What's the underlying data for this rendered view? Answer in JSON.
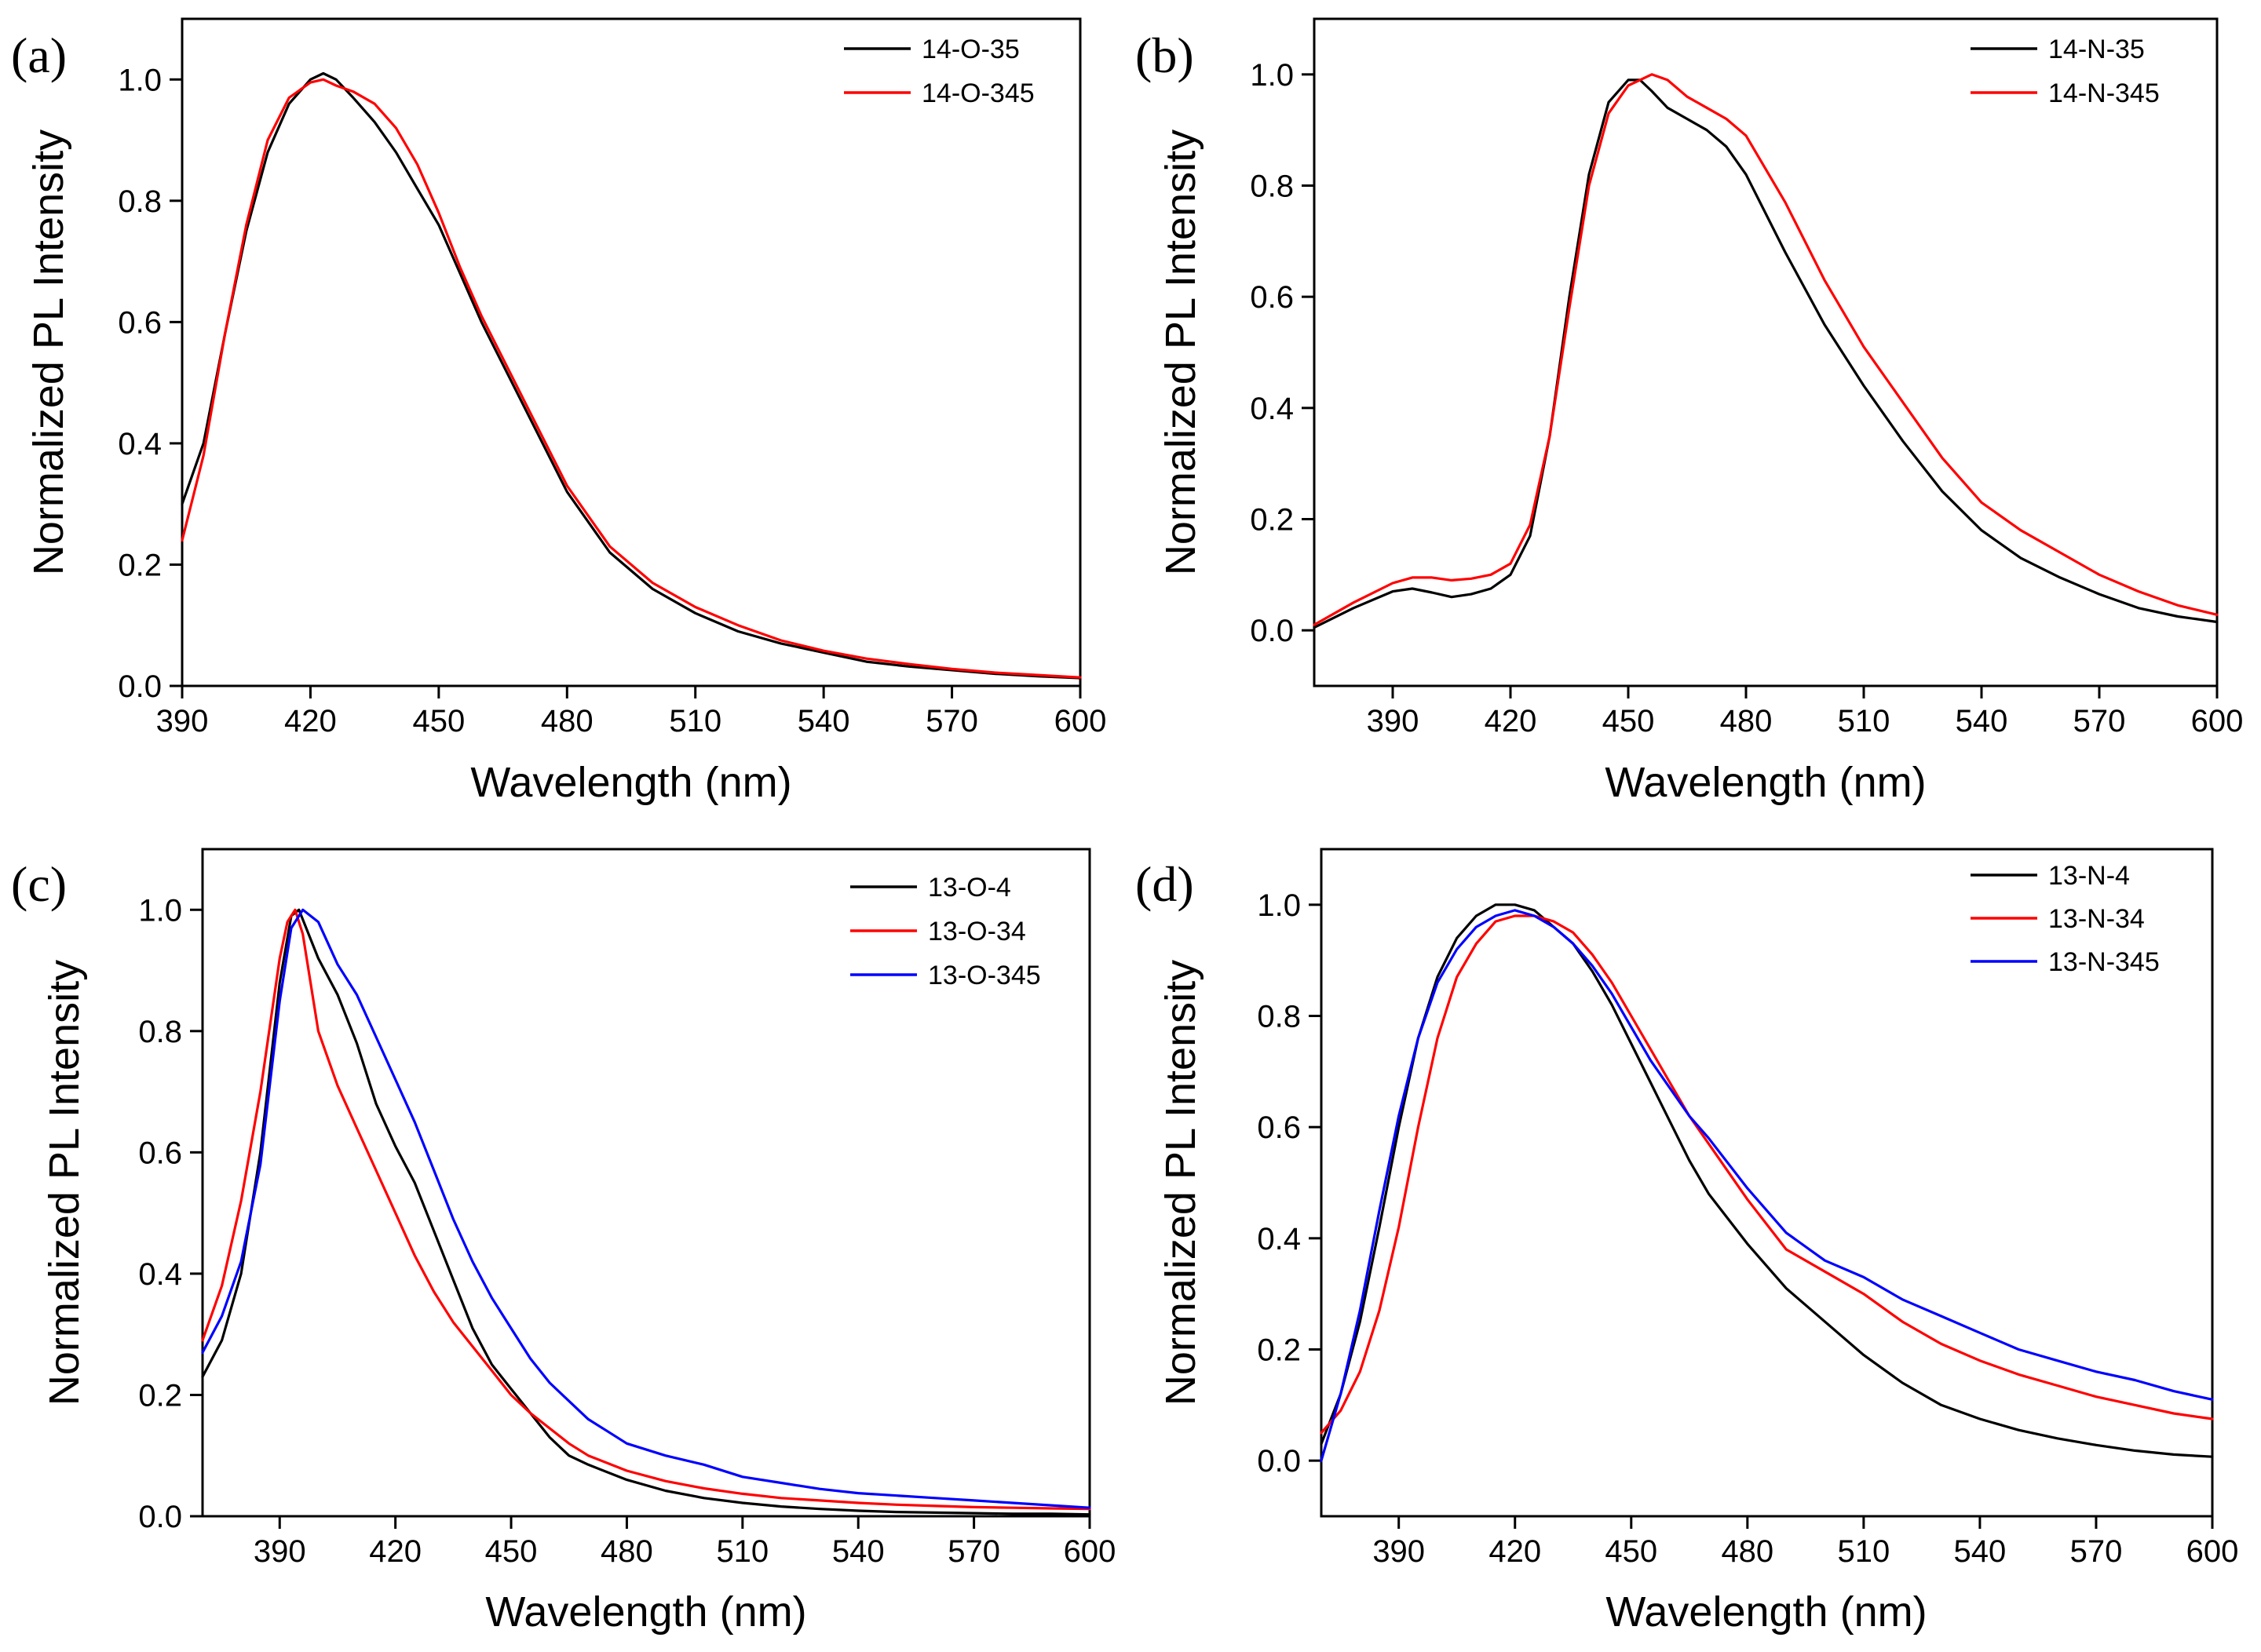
{
  "figure": {
    "colors": {
      "black": "#000000",
      "red": "#ff0000",
      "blue": "#0000ff"
    }
  },
  "chart_data": [
    {
      "id": "a",
      "panel_label": "(a)",
      "type": "line",
      "title": "",
      "xlabel": "Wavelength (nm)",
      "ylabel": "Normalized PL Intensity",
      "xlim": [
        390,
        600
      ],
      "ylim": [
        0.0,
        1.1
      ],
      "xticks": [
        390,
        420,
        450,
        480,
        510,
        540,
        570,
        600
      ],
      "xtick_labels": [
        "390",
        "420",
        "450",
        "480",
        "510",
        "540",
        "570",
        "600"
      ],
      "yticks": [
        0.0,
        0.2,
        0.4,
        0.6,
        0.8,
        1.0
      ],
      "ytick_labels": [
        "0.0",
        "0.2",
        "0.4",
        "0.6",
        "0.8",
        "1.0"
      ],
      "grid": false,
      "legend_position": "top-right",
      "series": [
        {
          "name": "14-O-35",
          "color": "#000000",
          "x": [
            390,
            395,
            400,
            405,
            410,
            415,
            420,
            423,
            426,
            430,
            435,
            440,
            445,
            450,
            455,
            460,
            470,
            480,
            490,
            500,
            510,
            520,
            530,
            540,
            550,
            560,
            570,
            580,
            590,
            600
          ],
          "y": [
            0.3,
            0.4,
            0.58,
            0.75,
            0.88,
            0.96,
            1.0,
            1.01,
            1.0,
            0.97,
            0.93,
            0.88,
            0.82,
            0.76,
            0.68,
            0.6,
            0.46,
            0.32,
            0.22,
            0.16,
            0.12,
            0.09,
            0.07,
            0.055,
            0.04,
            0.032,
            0.026,
            0.02,
            0.016,
            0.013
          ]
        },
        {
          "name": "14-O-345",
          "color": "#ff0000",
          "x": [
            390,
            395,
            400,
            405,
            410,
            415,
            420,
            423,
            426,
            430,
            435,
            440,
            445,
            450,
            455,
            460,
            470,
            480,
            490,
            500,
            510,
            520,
            530,
            540,
            550,
            560,
            570,
            580,
            590,
            600
          ],
          "y": [
            0.24,
            0.38,
            0.58,
            0.76,
            0.9,
            0.97,
            0.995,
            1.0,
            0.99,
            0.98,
            0.96,
            0.92,
            0.86,
            0.78,
            0.69,
            0.61,
            0.47,
            0.33,
            0.23,
            0.17,
            0.13,
            0.1,
            0.075,
            0.058,
            0.045,
            0.036,
            0.028,
            0.022,
            0.018,
            0.014
          ]
        }
      ]
    },
    {
      "id": "b",
      "panel_label": "(b)",
      "type": "line",
      "title": "",
      "xlabel": "Wavelength (nm)",
      "ylabel": "Normalized PL Intensity",
      "xlim": [
        370,
        600
      ],
      "ylim": [
        -0.1,
        1.1
      ],
      "xticks": [
        390,
        420,
        450,
        480,
        510,
        540,
        570,
        600
      ],
      "xtick_labels": [
        "390",
        "420",
        "450",
        "480",
        "510",
        "540",
        "570",
        "600"
      ],
      "yticks": [
        0.0,
        0.2,
        0.4,
        0.6,
        0.8,
        1.0
      ],
      "ytick_labels": [
        "0.0",
        "0.2",
        "0.4",
        "0.6",
        "0.8",
        "1.0"
      ],
      "grid": false,
      "legend_position": "top-right",
      "series": [
        {
          "name": "14-N-35",
          "color": "#000000",
          "x": [
            370,
            380,
            390,
            395,
            400,
            405,
            410,
            415,
            420,
            425,
            430,
            435,
            440,
            445,
            450,
            453,
            456,
            460,
            465,
            470,
            475,
            480,
            490,
            500,
            510,
            520,
            530,
            540,
            550,
            560,
            570,
            580,
            590,
            600
          ],
          "y": [
            0.005,
            0.04,
            0.07,
            0.075,
            0.068,
            0.06,
            0.065,
            0.075,
            0.1,
            0.17,
            0.35,
            0.6,
            0.82,
            0.95,
            0.99,
            0.99,
            0.97,
            0.94,
            0.92,
            0.9,
            0.87,
            0.82,
            0.68,
            0.55,
            0.44,
            0.34,
            0.25,
            0.18,
            0.13,
            0.095,
            0.065,
            0.04,
            0.025,
            0.015
          ]
        },
        {
          "name": "14-N-345",
          "color": "#ff0000",
          "x": [
            370,
            380,
            390,
            395,
            400,
            405,
            410,
            415,
            420,
            425,
            430,
            435,
            440,
            445,
            450,
            453,
            456,
            460,
            465,
            470,
            475,
            480,
            490,
            500,
            510,
            520,
            530,
            540,
            550,
            560,
            570,
            580,
            590,
            600
          ],
          "y": [
            0.01,
            0.05,
            0.085,
            0.095,
            0.095,
            0.09,
            0.093,
            0.1,
            0.12,
            0.19,
            0.35,
            0.58,
            0.8,
            0.93,
            0.98,
            0.99,
            1.0,
            0.99,
            0.96,
            0.94,
            0.92,
            0.89,
            0.77,
            0.63,
            0.51,
            0.41,
            0.31,
            0.23,
            0.18,
            0.14,
            0.1,
            0.07,
            0.045,
            0.028
          ]
        }
      ]
    },
    {
      "id": "c",
      "panel_label": "(c)",
      "type": "line",
      "title": "",
      "xlabel": "Wavelength (nm)",
      "ylabel": "Normalized PL Intensity",
      "xlim": [
        370,
        600
      ],
      "ylim": [
        0.0,
        1.1
      ],
      "xticks": [
        390,
        420,
        450,
        480,
        510,
        540,
        570,
        600
      ],
      "xtick_labels": [
        "390",
        "420",
        "450",
        "480",
        "510",
        "540",
        "570",
        "600"
      ],
      "yticks": [
        0.0,
        0.2,
        0.4,
        0.6,
        0.8,
        1.0
      ],
      "ytick_labels": [
        "0.0",
        "0.2",
        "0.4",
        "0.6",
        "0.8",
        "1.0"
      ],
      "grid": false,
      "legend_position": "top-right",
      "series": [
        {
          "name": "13-O-4",
          "color": "#000000",
          "x": [
            370,
            375,
            380,
            385,
            390,
            393,
            395,
            400,
            405,
            410,
            415,
            420,
            425,
            430,
            435,
            440,
            445,
            450,
            455,
            460,
            465,
            470,
            480,
            490,
            500,
            510,
            520,
            530,
            540,
            550,
            560,
            570,
            580,
            590,
            600
          ],
          "y": [
            0.23,
            0.29,
            0.4,
            0.6,
            0.88,
            0.99,
            1.0,
            0.92,
            0.86,
            0.78,
            0.68,
            0.61,
            0.55,
            0.47,
            0.39,
            0.31,
            0.25,
            0.21,
            0.17,
            0.13,
            0.1,
            0.085,
            0.06,
            0.042,
            0.03,
            0.022,
            0.016,
            0.012,
            0.009,
            0.007,
            0.006,
            0.005,
            0.004,
            0.004,
            0.003
          ]
        },
        {
          "name": "13-O-34",
          "color": "#ff0000",
          "x": [
            370,
            375,
            380,
            385,
            390,
            392,
            394,
            396,
            400,
            405,
            410,
            415,
            420,
            425,
            430,
            435,
            440,
            445,
            450,
            455,
            460,
            465,
            470,
            480,
            490,
            500,
            510,
            520,
            530,
            540,
            550,
            560,
            570,
            580,
            590,
            600
          ],
          "y": [
            0.29,
            0.38,
            0.52,
            0.7,
            0.92,
            0.98,
            1.0,
            0.96,
            0.8,
            0.71,
            0.64,
            0.57,
            0.5,
            0.43,
            0.37,
            0.32,
            0.28,
            0.24,
            0.2,
            0.17,
            0.145,
            0.12,
            0.1,
            0.075,
            0.058,
            0.046,
            0.037,
            0.03,
            0.026,
            0.022,
            0.019,
            0.017,
            0.015,
            0.014,
            0.013,
            0.012
          ]
        },
        {
          "name": "13-O-345",
          "color": "#0000ff",
          "x": [
            370,
            375,
            380,
            385,
            390,
            393,
            396,
            400,
            405,
            410,
            415,
            420,
            425,
            430,
            435,
            440,
            445,
            450,
            455,
            460,
            465,
            470,
            475,
            480,
            490,
            500,
            510,
            520,
            530,
            540,
            550,
            560,
            570,
            580,
            590,
            600
          ],
          "y": [
            0.27,
            0.33,
            0.42,
            0.58,
            0.85,
            0.97,
            1.0,
            0.98,
            0.91,
            0.86,
            0.79,
            0.72,
            0.65,
            0.57,
            0.49,
            0.42,
            0.36,
            0.31,
            0.26,
            0.22,
            0.19,
            0.16,
            0.14,
            0.12,
            0.1,
            0.085,
            0.065,
            0.055,
            0.045,
            0.038,
            0.034,
            0.03,
            0.026,
            0.022,
            0.018,
            0.014
          ]
        }
      ]
    },
    {
      "id": "d",
      "panel_label": "(d)",
      "type": "line",
      "title": "",
      "xlabel": "Wavelength (nm)",
      "ylabel": "Normalized PL Intensity",
      "xlim": [
        370,
        600
      ],
      "ylim": [
        -0.1,
        1.1
      ],
      "xticks": [
        390,
        420,
        450,
        480,
        510,
        540,
        570,
        600
      ],
      "xtick_labels": [
        "390",
        "420",
        "450",
        "480",
        "510",
        "540",
        "570",
        "600"
      ],
      "yticks": [
        0.0,
        0.2,
        0.4,
        0.6,
        0.8,
        1.0
      ],
      "ytick_labels": [
        "0.0",
        "0.2",
        "0.4",
        "0.6",
        "0.8",
        "1.0"
      ],
      "grid": false,
      "legend_position": "top-right",
      "series": [
        {
          "name": "13-N-4",
          "color": "#000000",
          "x": [
            370,
            375,
            380,
            385,
            390,
            395,
            400,
            405,
            410,
            415,
            420,
            425,
            430,
            435,
            440,
            445,
            450,
            455,
            460,
            465,
            470,
            480,
            490,
            500,
            510,
            520,
            530,
            540,
            550,
            560,
            570,
            580,
            590,
            600
          ],
          "y": [
            0.03,
            0.12,
            0.25,
            0.42,
            0.6,
            0.76,
            0.87,
            0.94,
            0.98,
            1.0,
            1.0,
            0.99,
            0.96,
            0.93,
            0.88,
            0.82,
            0.75,
            0.68,
            0.61,
            0.54,
            0.48,
            0.39,
            0.31,
            0.25,
            0.19,
            0.14,
            0.1,
            0.075,
            0.055,
            0.04,
            0.028,
            0.018,
            0.011,
            0.007
          ]
        },
        {
          "name": "13-N-34",
          "color": "#ff0000",
          "x": [
            370,
            375,
            380,
            385,
            390,
            395,
            400,
            405,
            410,
            415,
            420,
            425,
            430,
            435,
            440,
            445,
            450,
            455,
            460,
            465,
            470,
            480,
            490,
            500,
            510,
            520,
            530,
            540,
            550,
            560,
            570,
            580,
            590,
            600
          ],
          "y": [
            0.05,
            0.09,
            0.16,
            0.27,
            0.42,
            0.6,
            0.76,
            0.87,
            0.93,
            0.97,
            0.98,
            0.98,
            0.97,
            0.95,
            0.91,
            0.86,
            0.8,
            0.74,
            0.68,
            0.62,
            0.57,
            0.47,
            0.38,
            0.34,
            0.3,
            0.25,
            0.21,
            0.18,
            0.155,
            0.135,
            0.115,
            0.1,
            0.085,
            0.075
          ]
        },
        {
          "name": "13-N-345",
          "color": "#0000ff",
          "x": [
            370,
            375,
            380,
            385,
            390,
            395,
            400,
            405,
            410,
            415,
            420,
            425,
            430,
            435,
            440,
            445,
            450,
            455,
            460,
            465,
            470,
            480,
            490,
            500,
            510,
            520,
            530,
            540,
            550,
            560,
            570,
            580,
            590,
            600
          ],
          "y": [
            0.0,
            0.12,
            0.27,
            0.45,
            0.62,
            0.76,
            0.86,
            0.92,
            0.96,
            0.98,
            0.99,
            0.98,
            0.96,
            0.93,
            0.89,
            0.84,
            0.78,
            0.72,
            0.67,
            0.62,
            0.58,
            0.49,
            0.41,
            0.36,
            0.33,
            0.29,
            0.26,
            0.23,
            0.2,
            0.18,
            0.16,
            0.145,
            0.125,
            0.11
          ]
        }
      ]
    }
  ]
}
